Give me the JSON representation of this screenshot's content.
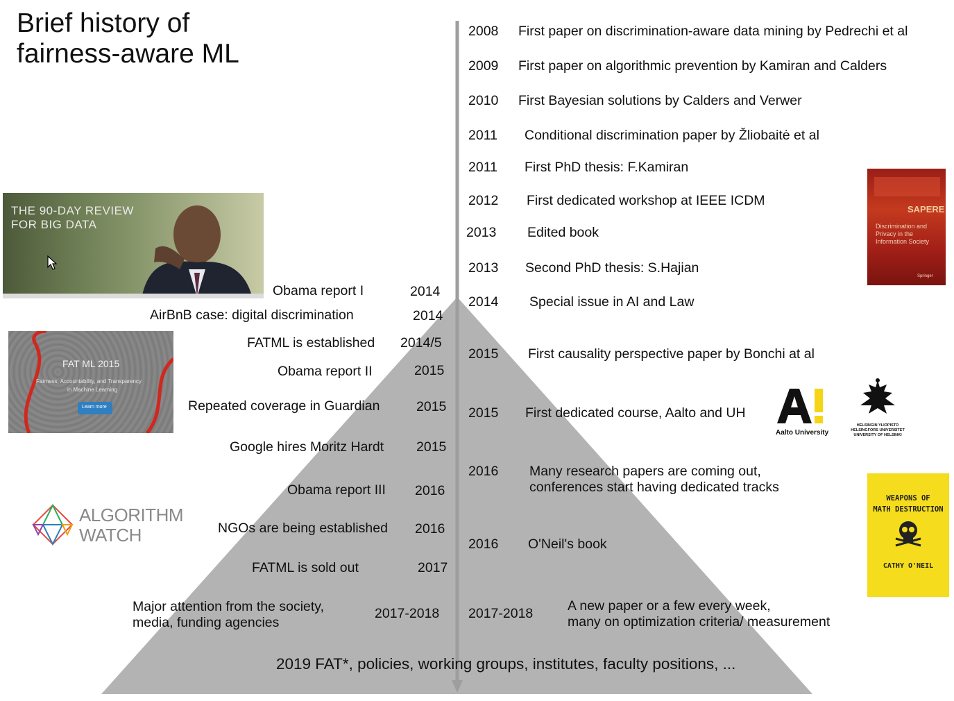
{
  "title": {
    "line1": "Brief history of",
    "line2": "fairness-aware ML"
  },
  "left_timeline": [
    {
      "text": "Obama report I",
      "year": "2014"
    },
    {
      "text": "AirBnB case: digital discrimination",
      "year": "2014"
    },
    {
      "text": "FATML is established",
      "year": "2014/5"
    },
    {
      "text": "Obama report II",
      "year": "2015"
    },
    {
      "text": "Repeated coverage in  Guardian",
      "year": "2015"
    },
    {
      "text": "Google hires Moritz Hardt",
      "year": "2015"
    },
    {
      "text": "Obama report III",
      "year": "2016"
    },
    {
      "text": "NGOs are being established",
      "year": "2016"
    },
    {
      "text": "FATML is sold out",
      "year": "2017"
    },
    {
      "text_line1": "Major attention from the society,",
      "text_line2": "media, funding agencies",
      "year": "2017-2018"
    }
  ],
  "right_timeline": [
    {
      "year": "2008",
      "text": "First paper on discrimination-aware data mining  by Pedrechi et al"
    },
    {
      "year": "2009",
      "text": "First paper on algorithmic prevention by Kamiran and Calders"
    },
    {
      "year": "2010",
      "text": "First Bayesian solutions by Calders and Verwer"
    },
    {
      "year": "2011",
      "text": "Conditional discrimination paper by Žliobaitė et al"
    },
    {
      "year": "2011",
      "text": "First PhD thesis: F.Kamiran"
    },
    {
      "year": "2012",
      "text": "First dedicated workshop at IEEE ICDM"
    },
    {
      "year": "2013",
      "text": "Edited book"
    },
    {
      "year": "2013",
      "text": "Second  PhD thesis: S.Hajian"
    },
    {
      "year": "2014",
      "text": "Special issue in AI and Law"
    },
    {
      "year": "2015",
      "text": "First causality perspective paper by Bonchi at al"
    },
    {
      "year": "2015",
      "text": "First dedicated course, Aalto and UH"
    },
    {
      "year": "2016",
      "text_line1": "Many research papers are coming out,",
      "text_line2": "conferences start having dedicated tracks"
    },
    {
      "year": "2016",
      "text": "O'Neil's book"
    },
    {
      "year": "2017-2018",
      "text_line1": "A new paper or a few every week,",
      "text_line2": "many  on optimization criteria/ measurement"
    }
  ],
  "bottom": "2019 FAT*, policies, working groups, institutes, faculty positions, ...",
  "images": {
    "obama_banner": {
      "line1": "THE 90-DAY REVIEW",
      "line2": "FOR BIG DATA"
    },
    "fatml_banner": {
      "title": "FAT ML 2015",
      "sub1": "Fairness, Accountability, and Transparency",
      "sub2": "in Machine Learning",
      "button": "Learn more"
    },
    "sapere_book": {
      "series": "SAPERE",
      "title1": "Discrimination and",
      "title2": "Privacy in the",
      "title3": "Information Society",
      "publisher": "Springer"
    },
    "wmd_book": {
      "title1": "WEAPONS OF",
      "title2": "MATH DESTRUCTION",
      "author": "CATHY O'NEIL"
    },
    "algorithm_watch": {
      "line1": "ALGORITHM",
      "line2": "WATCH"
    },
    "aalto": {
      "caption": "Aalto University"
    },
    "helsinki": {
      "line1": "HELSINGIN YLIOPISTO",
      "line2": "HELSINGFORS UNIVERSITET",
      "line3": "UNIVERSITY OF HELSINKI"
    }
  },
  "colors": {
    "pyramid": "#b3b3b3",
    "axis": "#9e9e9e",
    "text": "#111111",
    "wmd_yellow": "#f5dc1c",
    "sapere_red": "#b22a1a"
  }
}
